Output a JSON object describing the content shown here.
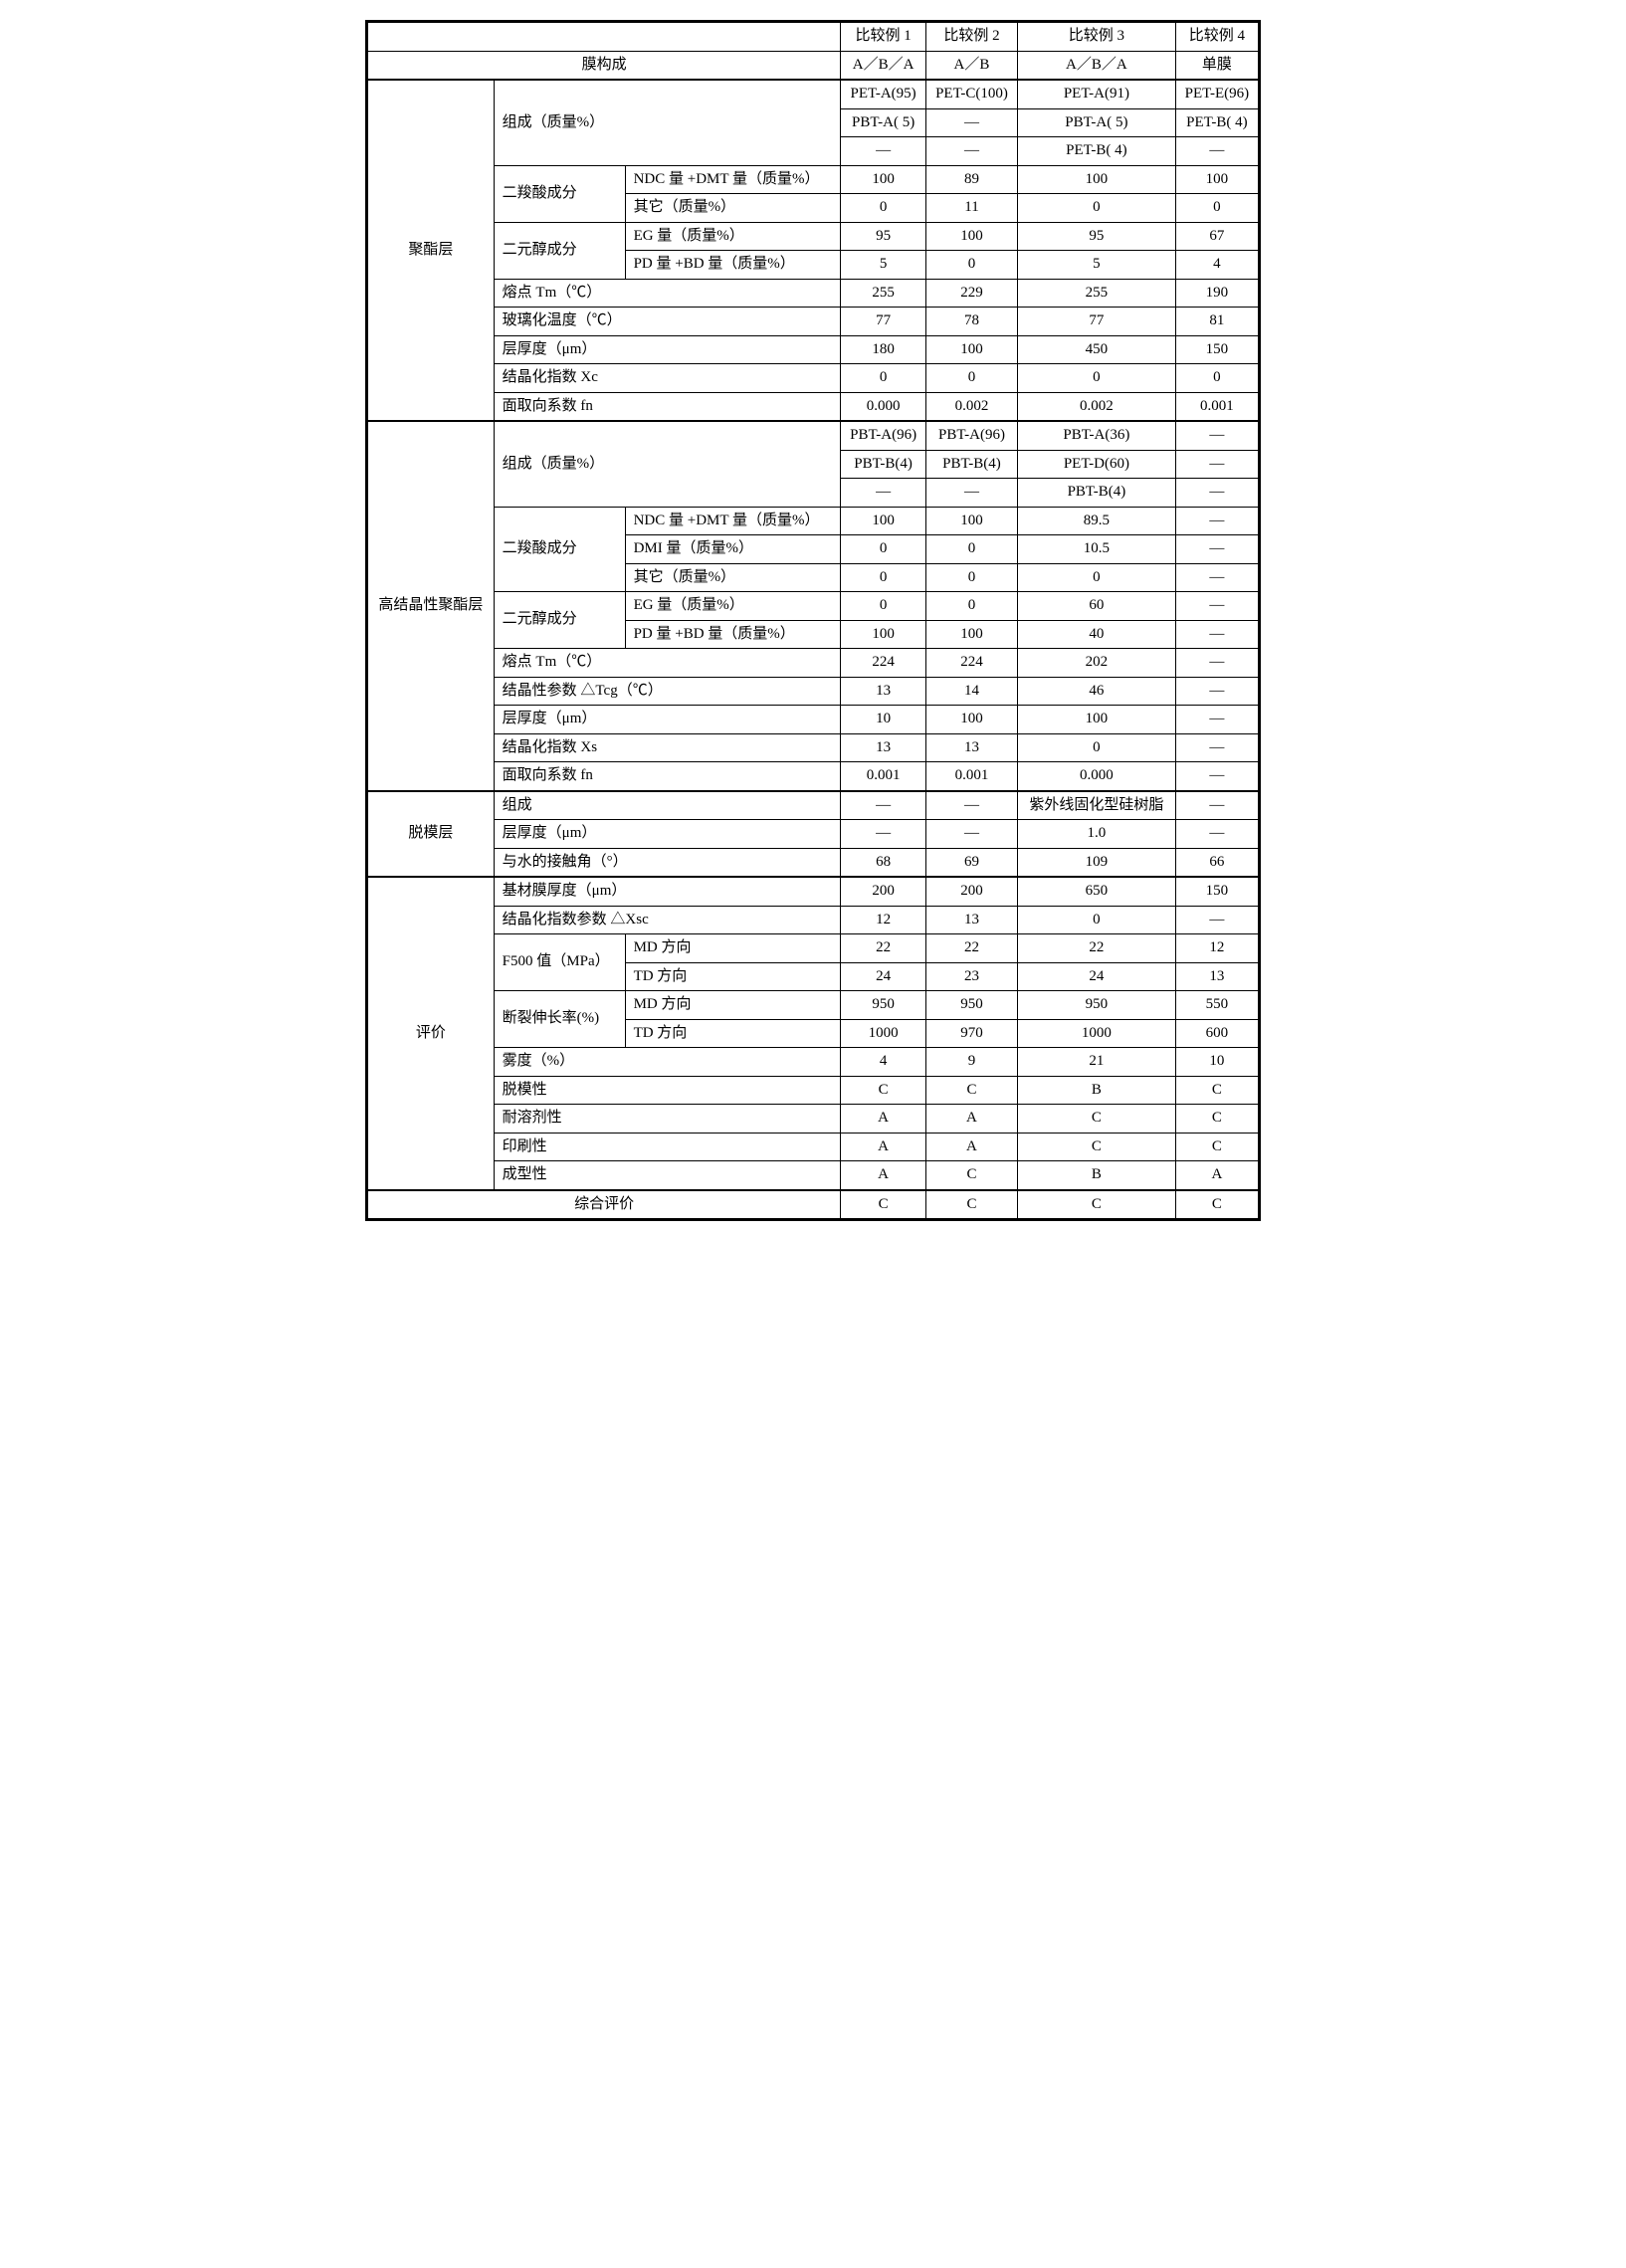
{
  "header": {
    "blank": "",
    "c1": "比较例 1",
    "c2": "比较例 2",
    "c3": "比较例 3",
    "c4": "比较例 4"
  },
  "film_struct": {
    "label": "膜构成",
    "v": [
      "A／B／A",
      "A／B",
      "A／B／A",
      "单膜"
    ]
  },
  "polyester": {
    "section": "聚酯层",
    "comp_label": "组成（质量%）",
    "comp_r1": [
      "PET-A(95)",
      "PET-C(100)",
      "PET-A(91)",
      "PET-E(96)"
    ],
    "comp_r2": [
      "PBT-A( 5)",
      "—",
      "PBT-A( 5)",
      "PET-B( 4)"
    ],
    "comp_r3": [
      "—",
      "—",
      "PET-B( 4)",
      "—"
    ],
    "diacid_label": "二羧酸成分",
    "ndc_dmt_label": "NDC 量 +DMT 量（质量%）",
    "ndc_dmt": [
      "100",
      "89",
      "100",
      "100"
    ],
    "other_label": "其它（质量%）",
    "other": [
      "0",
      "11",
      "0",
      "0"
    ],
    "diol_label": "二元醇成分",
    "eg_label": "EG 量（质量%）",
    "eg": [
      "95",
      "100",
      "95",
      "67"
    ],
    "pdbd_label": "PD 量 +BD 量（质量%）",
    "pdbd": [
      "5",
      "0",
      "5",
      "4"
    ],
    "tm_label": "熔点 Tm（℃）",
    "tm": [
      "255",
      "229",
      "255",
      "190"
    ],
    "tg_label": "玻璃化温度（℃）",
    "tg": [
      "77",
      "78",
      "77",
      "81"
    ],
    "thick_label": "层厚度（μm）",
    "thick": [
      "180",
      "100",
      "450",
      "150"
    ],
    "xc_label": "结晶化指数 Xc",
    "xc": [
      "0",
      "0",
      "0",
      "0"
    ],
    "fn_label": "面取向系数 fn",
    "fn": [
      "0.000",
      "0.002",
      "0.002",
      "0.001"
    ]
  },
  "highcryst": {
    "section": "高结晶性聚酯层",
    "comp_label": "组成（质量%）",
    "comp_r1": [
      "PBT-A(96)",
      "PBT-A(96)",
      "PBT-A(36)",
      "—"
    ],
    "comp_r2": [
      "PBT-B(4)",
      "PBT-B(4)",
      "PET-D(60)",
      "—"
    ],
    "comp_r3": [
      "—",
      "—",
      "PBT-B(4)",
      "—"
    ],
    "diacid_label": "二羧酸成分",
    "ndc_dmt_label": "NDC 量 +DMT 量（质量%）",
    "ndc_dmt": [
      "100",
      "100",
      "89.5",
      "—"
    ],
    "dmi_label": "DMI 量（质量%）",
    "dmi": [
      "0",
      "0",
      "10.5",
      "—"
    ],
    "other_label": "其它（质量%）",
    "other": [
      "0",
      "0",
      "0",
      "—"
    ],
    "diol_label": "二元醇成分",
    "eg_label": "EG 量（质量%）",
    "eg": [
      "0",
      "0",
      "60",
      "—"
    ],
    "pdbd_label": "PD 量 +BD 量（质量%）",
    "pdbd": [
      "100",
      "100",
      "40",
      "—"
    ],
    "tm_label": "熔点 Tm（℃）",
    "tm": [
      "224",
      "224",
      "202",
      "—"
    ],
    "dtcg_label": "结晶性参数 △Tcg（℃）",
    "dtcg": [
      "13",
      "14",
      "46",
      "—"
    ],
    "thick_label": "层厚度（μm）",
    "thick": [
      "10",
      "100",
      "100",
      "—"
    ],
    "xs_label": "结晶化指数 Xs",
    "xs": [
      "13",
      "13",
      "0",
      "—"
    ],
    "fn_label": "面取向系数 fn",
    "fn": [
      "0.001",
      "0.001",
      "0.000",
      "—"
    ]
  },
  "release": {
    "section": "脱模层",
    "comp_label": "组成",
    "comp": [
      "—",
      "—",
      "紫外线固化型硅树脂",
      "—"
    ],
    "thick_label": "层厚度（μm）",
    "thick": [
      "—",
      "—",
      "1.0",
      "—"
    ],
    "contact_label": "与水的接触角（°）",
    "contact": [
      "68",
      "69",
      "109",
      "66"
    ]
  },
  "eval": {
    "section": "评价",
    "base_thick_label": "基材膜厚度（μm）",
    "base_thick": [
      "200",
      "200",
      "650",
      "150"
    ],
    "dxsc_label": "结晶化指数参数 △Xsc",
    "dxsc": [
      "12",
      "13",
      "0",
      "—"
    ],
    "f500_label": "F500 值（MPa）",
    "md_label": "MD 方向",
    "td_label": "TD 方向",
    "f500_md": [
      "22",
      "22",
      "22",
      "12"
    ],
    "f500_td": [
      "24",
      "23",
      "24",
      "13"
    ],
    "elong_label": "断裂伸长率(%)",
    "elong_md": [
      "950",
      "950",
      "950",
      "550"
    ],
    "elong_td": [
      "1000",
      "970",
      "1000",
      "600"
    ],
    "haze_label": "雾度（%）",
    "haze": [
      "4",
      "9",
      "21",
      "10"
    ],
    "release_label": "脱模性",
    "release": [
      "C",
      "C",
      "B",
      "C"
    ],
    "solvent_label": "耐溶剂性",
    "solvent": [
      "A",
      "A",
      "C",
      "C"
    ],
    "print_label": "印刷性",
    "print": [
      "A",
      "A",
      "C",
      "C"
    ],
    "form_label": "成型性",
    "form": [
      "A",
      "C",
      "B",
      "A"
    ],
    "overall_label": "综合评价",
    "overall": [
      "C",
      "C",
      "C",
      "C"
    ]
  }
}
